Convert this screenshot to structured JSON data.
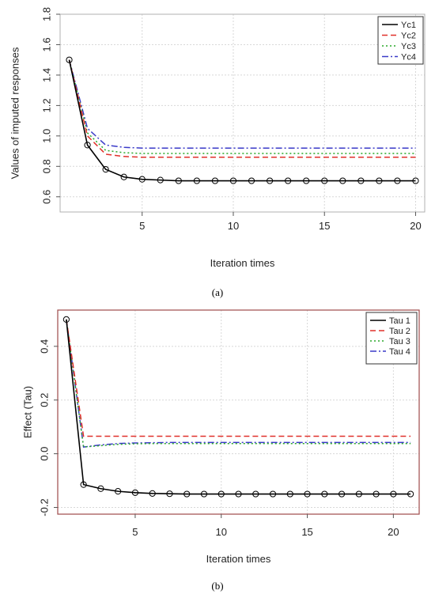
{
  "chart_data": [
    {
      "type": "line",
      "caption": "(a)",
      "xlabel": "Iteration times",
      "ylabel": "Values of imputed responses",
      "xlim": [
        0.5,
        20.5
      ],
      "ylim": [
        0.5,
        1.8
      ],
      "xticks": [
        5,
        10,
        15,
        20
      ],
      "yticks": [
        0.6,
        0.8,
        1.0,
        1.2,
        1.4,
        1.6,
        1.8
      ],
      "ytick_labels": [
        "0.6",
        "0.8",
        "1.0",
        "1.2",
        "1.4",
        "1.6",
        "1.8"
      ],
      "grid": true,
      "legend_position": "top-right",
      "x": [
        1,
        2,
        3,
        4,
        5,
        6,
        7,
        8,
        9,
        10,
        11,
        12,
        13,
        14,
        15,
        16,
        17,
        18,
        19,
        20
      ],
      "series": [
        {
          "name": "Yc1",
          "color": "#000000",
          "dash": "solid",
          "markers": true,
          "values": [
            1.5,
            0.94,
            0.78,
            0.73,
            0.715,
            0.71,
            0.705,
            0.705,
            0.705,
            0.705,
            0.705,
            0.705,
            0.705,
            0.705,
            0.705,
            0.705,
            0.705,
            0.705,
            0.705,
            0.705
          ]
        },
        {
          "name": "Yc2",
          "color": "#e0302a",
          "dash": "dashed",
          "markers": false,
          "values": [
            1.5,
            1.0,
            0.88,
            0.865,
            0.86,
            0.86,
            0.86,
            0.86,
            0.86,
            0.86,
            0.86,
            0.86,
            0.86,
            0.86,
            0.86,
            0.86,
            0.86,
            0.86,
            0.86,
            0.86
          ]
        },
        {
          "name": "Yc3",
          "color": "#2aa82a",
          "dash": "dotted",
          "markers": false,
          "values": [
            1.5,
            1.02,
            0.905,
            0.89,
            0.885,
            0.885,
            0.885,
            0.885,
            0.885,
            0.885,
            0.885,
            0.885,
            0.885,
            0.885,
            0.885,
            0.885,
            0.885,
            0.885,
            0.885,
            0.885
          ]
        },
        {
          "name": "Yc4",
          "color": "#3a3ac8",
          "dash": "dashdot",
          "markers": false,
          "values": [
            1.5,
            1.05,
            0.94,
            0.925,
            0.92,
            0.92,
            0.92,
            0.92,
            0.92,
            0.92,
            0.92,
            0.92,
            0.92,
            0.92,
            0.92,
            0.92,
            0.92,
            0.92,
            0.92,
            0.92
          ]
        }
      ]
    },
    {
      "type": "line",
      "caption": "(b)",
      "xlabel": "Iteration times",
      "ylabel": "Effect (Tau)",
      "xlim": [
        0.5,
        21.5
      ],
      "ylim": [
        -0.225,
        0.535
      ],
      "xticks": [
        5,
        10,
        15,
        20
      ],
      "yticks": [
        -0.2,
        0.0,
        0.2,
        0.4
      ],
      "ytick_labels": [
        "-0.2",
        "0.0",
        "0.2",
        "0.4"
      ],
      "grid": true,
      "legend_position": "top-right",
      "x": [
        1,
        2,
        3,
        4,
        5,
        6,
        7,
        8,
        9,
        10,
        11,
        12,
        13,
        14,
        15,
        16,
        17,
        18,
        19,
        20,
        21
      ],
      "series": [
        {
          "name": "Tau 1",
          "color": "#000000",
          "dash": "solid",
          "markers": true,
          "values": [
            0.5,
            -0.115,
            -0.13,
            -0.14,
            -0.145,
            -0.148,
            -0.149,
            -0.15,
            -0.15,
            -0.15,
            -0.15,
            -0.15,
            -0.15,
            -0.15,
            -0.15,
            -0.15,
            -0.15,
            -0.15,
            -0.15,
            -0.15,
            -0.15
          ]
        },
        {
          "name": "Tau 2",
          "color": "#e0302a",
          "dash": "dashed",
          "markers": false,
          "values": [
            0.5,
            0.065,
            0.065,
            0.065,
            0.065,
            0.065,
            0.065,
            0.065,
            0.065,
            0.065,
            0.065,
            0.065,
            0.065,
            0.065,
            0.065,
            0.065,
            0.065,
            0.065,
            0.065,
            0.065,
            0.065
          ]
        },
        {
          "name": "Tau 3",
          "color": "#2aa82a",
          "dash": "dotted",
          "markers": false,
          "values": [
            0.5,
            0.025,
            0.03,
            0.035,
            0.037,
            0.038,
            0.038,
            0.038,
            0.038,
            0.038,
            0.038,
            0.038,
            0.038,
            0.038,
            0.038,
            0.038,
            0.038,
            0.038,
            0.038,
            0.038,
            0.038
          ]
        },
        {
          "name": "Tau 4",
          "color": "#3a3ac8",
          "dash": "dashdot",
          "markers": false,
          "values": [
            0.5,
            0.025,
            0.033,
            0.038,
            0.04,
            0.041,
            0.042,
            0.042,
            0.042,
            0.042,
            0.042,
            0.042,
            0.042,
            0.042,
            0.042,
            0.042,
            0.042,
            0.042,
            0.042,
            0.042,
            0.042
          ]
        }
      ]
    }
  ]
}
